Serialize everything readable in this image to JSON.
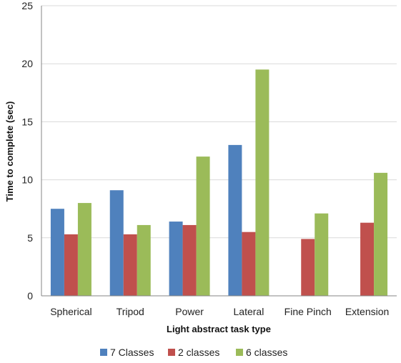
{
  "chart_data": {
    "type": "bar",
    "title": "",
    "xlabel": "Light abstract task type",
    "ylabel": "Time to complete (sec)",
    "categories": [
      "Spherical",
      "Tripod",
      "Power",
      "Lateral",
      "Fine Pinch",
      "Extension"
    ],
    "ylim": [
      0,
      25
    ],
    "yticks": [
      0,
      5,
      10,
      15,
      20,
      25
    ],
    "grid": true,
    "legend_position": "bottom",
    "series": [
      {
        "name": "7 Classes",
        "color": "#4F81BD",
        "values": [
          7.5,
          9.1,
          6.4,
          13.0,
          null,
          null
        ]
      },
      {
        "name": "2 classes",
        "color": "#C0504D",
        "values": [
          5.3,
          5.3,
          6.1,
          5.5,
          4.9,
          6.3
        ]
      },
      {
        "name": "6 classes",
        "color": "#9BBB59",
        "values": [
          8.0,
          6.1,
          12.0,
          19.5,
          7.1,
          10.6
        ]
      }
    ]
  }
}
